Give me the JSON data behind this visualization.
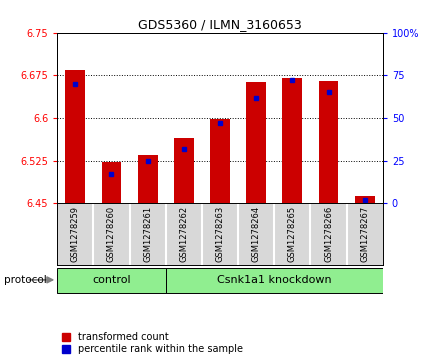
{
  "title": "GDS5360 / ILMN_3160653",
  "samples": [
    "GSM1278259",
    "GSM1278260",
    "GSM1278261",
    "GSM1278262",
    "GSM1278263",
    "GSM1278264",
    "GSM1278265",
    "GSM1278266",
    "GSM1278267"
  ],
  "transformed_count": [
    6.685,
    6.522,
    6.535,
    6.565,
    6.598,
    6.663,
    6.67,
    6.665,
    6.462
  ],
  "percentile_rank": [
    70,
    17,
    25,
    32,
    47,
    62,
    72,
    65,
    2
  ],
  "ylim_left": [
    6.45,
    6.75
  ],
  "ylim_right": [
    0,
    100
  ],
  "yticks_left": [
    6.45,
    6.525,
    6.6,
    6.675,
    6.75
  ],
  "yticks_right": [
    0,
    25,
    50,
    75,
    100
  ],
  "bar_color": "#cc0000",
  "dot_color": "#0000cc",
  "n_control": 3,
  "n_knockdown": 6,
  "control_label": "control",
  "knockdown_label": "Csnk1a1 knockdown",
  "protocol_label": "protocol",
  "legend_items": [
    "transformed count",
    "percentile rank within the sample"
  ],
  "bar_width": 0.55,
  "background_color": "#ffffff",
  "plot_bg_color": "#ffffff",
  "sample_box_color": "#d8d8d8",
  "group_green": "#90ee90",
  "base_value": 6.45
}
